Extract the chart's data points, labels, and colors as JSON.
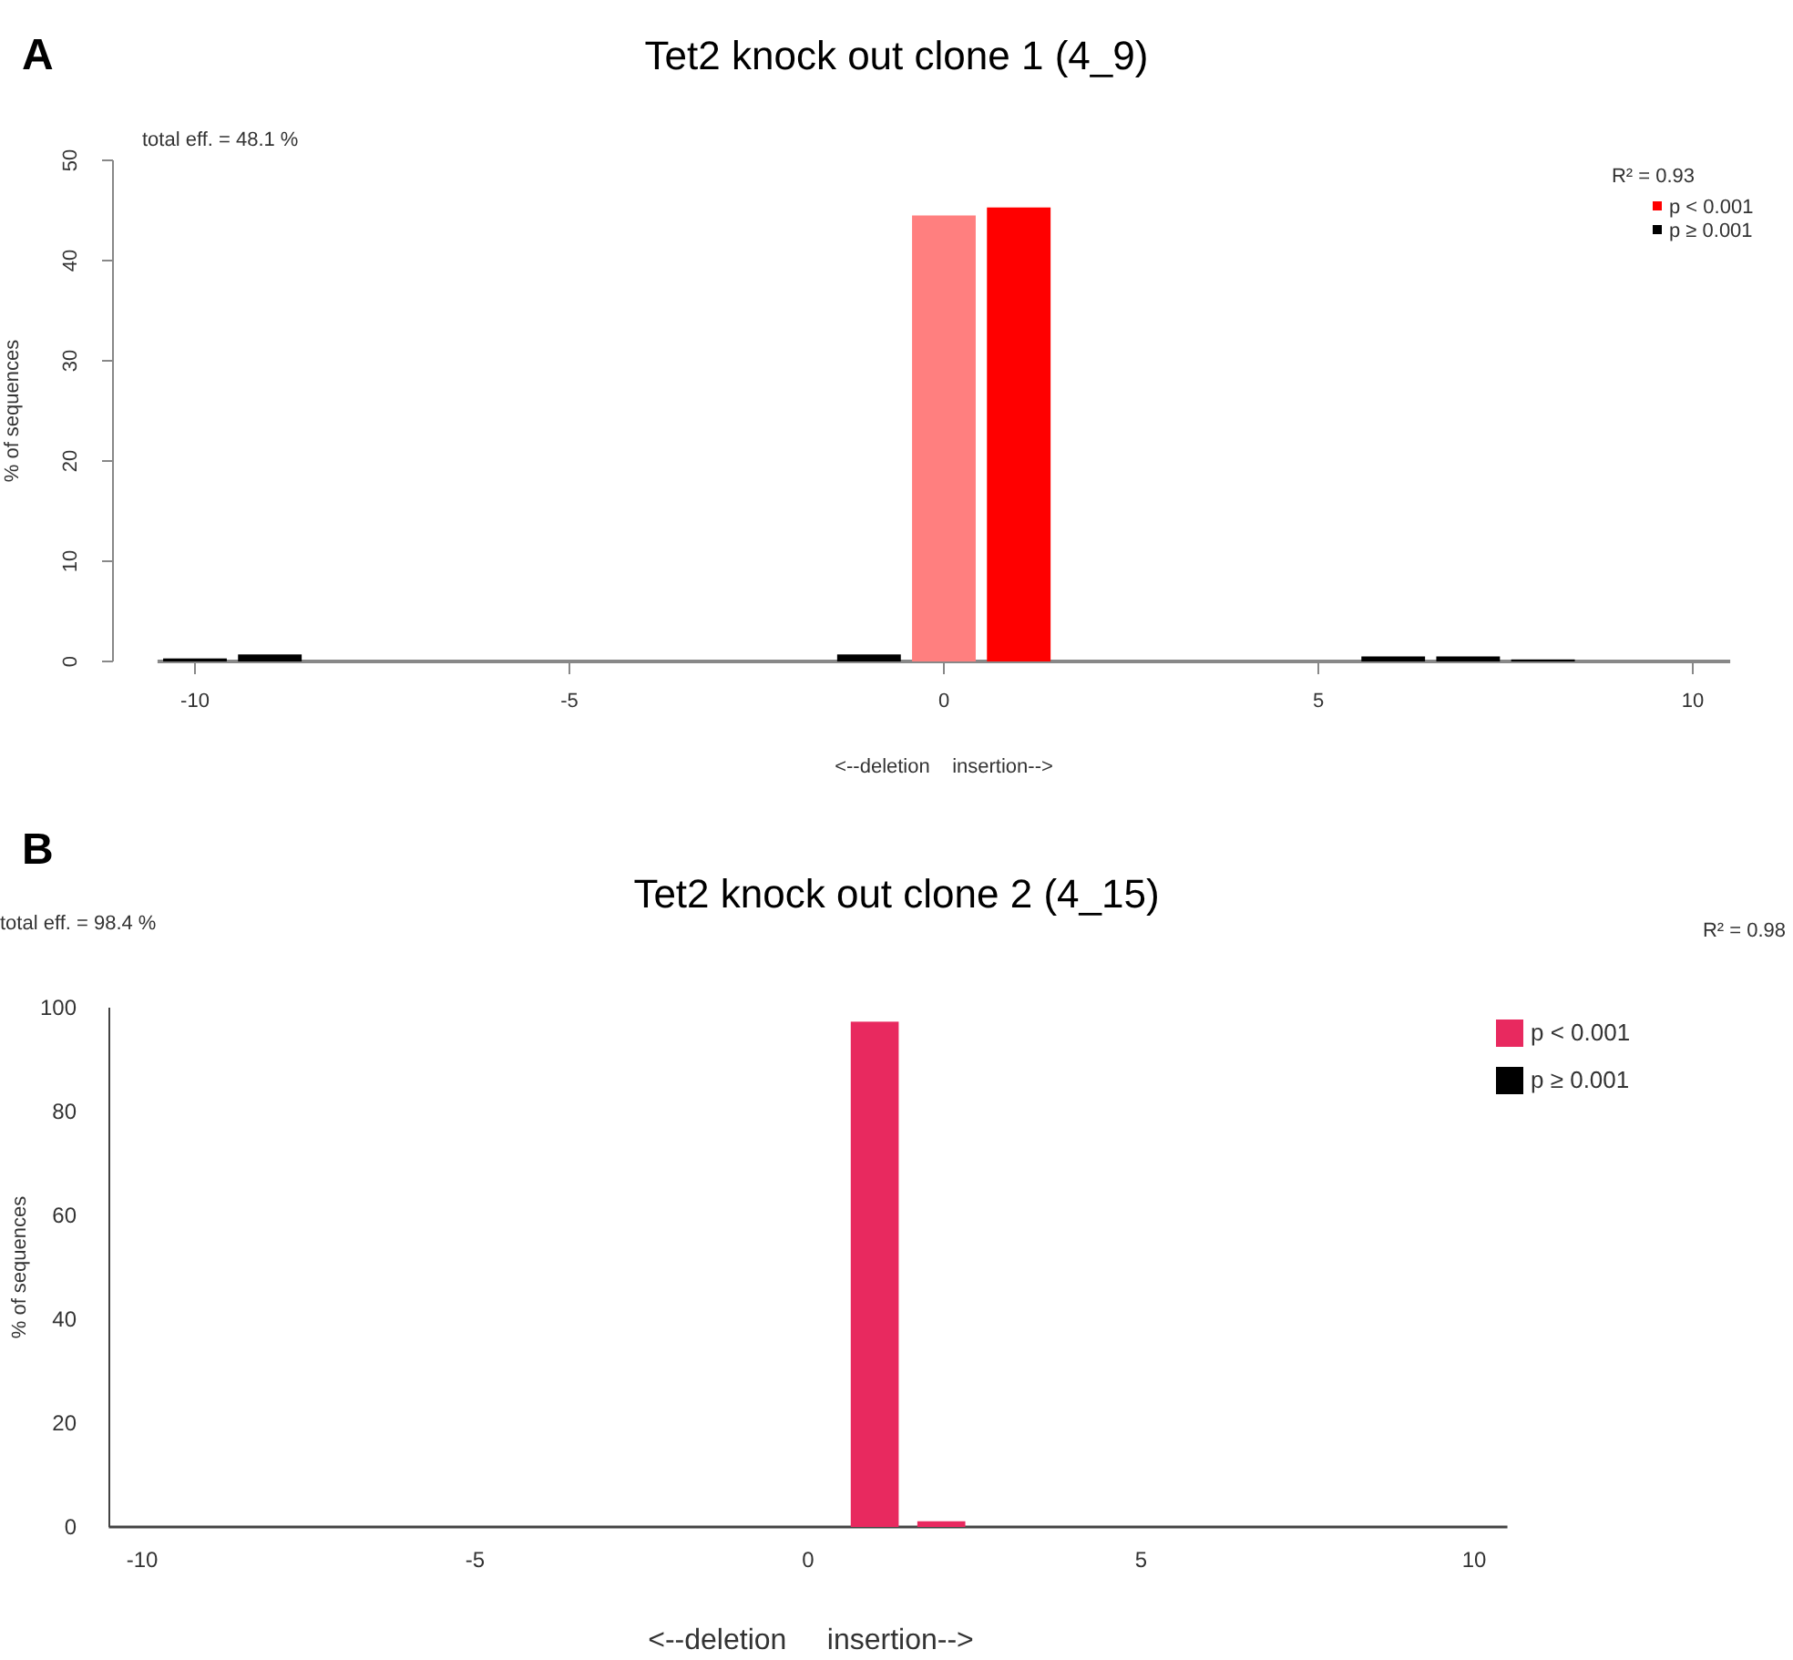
{
  "chart_data": [
    {
      "type": "bar",
      "title": "Tet2 knock out clone 1 (4_9)",
      "xlabel": "<--deletion    insertion-->",
      "ylabel": "% of sequences",
      "annotations": [
        "A",
        "total eff. = 48.1 %",
        "R² = 0.93"
      ],
      "series": [
        {
          "name": "p < 0.001",
          "color": "#ff0000",
          "x": [
            0,
            1
          ],
          "colors": [
            "#ff7f7f",
            "#ff0000"
          ],
          "values": [
            44.5,
            45.3
          ]
        },
        {
          "name": "p ≥ 0.001",
          "color": "#000000",
          "x": [
            -10,
            -9,
            -1,
            6,
            7,
            8
          ],
          "values": [
            0.3,
            0.7,
            0.7,
            0.5,
            0.5,
            0.2
          ]
        }
      ],
      "xlim": [
        -10.5,
        10.5
      ],
      "xticks": [
        -10,
        -5,
        0,
        5,
        10
      ],
      "ylim": [
        0,
        50
      ],
      "yticks": [
        0,
        10,
        20,
        30,
        40,
        50
      ],
      "grid": false,
      "legend": "top right"
    },
    {
      "type": "bar",
      "title": "Tet2 knock out clone 2 (4_15)",
      "xlabel": "<--deletion     insertion-->",
      "ylabel": "% of sequences",
      "annotations": [
        "B",
        "total eff. = 98.4 %",
        "R² = 0.98"
      ],
      "x": [
        1,
        2
      ],
      "series": [
        {
          "name": "p < 0.001",
          "color": "#e8295f",
          "values": [
            97.3,
            1.1
          ]
        },
        {
          "name": "p ≥ 0.001",
          "color": "#000000",
          "values": [
            null,
            null
          ]
        }
      ],
      "xlim": [
        -10.5,
        10.5
      ],
      "xticks": [
        -10,
        -5,
        0,
        5,
        10
      ],
      "ylim": [
        0,
        100
      ],
      "yticks": [
        0,
        20,
        40,
        60,
        80,
        100
      ],
      "grid": false,
      "legend": "right"
    }
  ]
}
